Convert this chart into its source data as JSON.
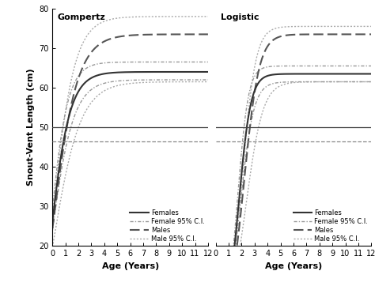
{
  "title_left": "Gompertz",
  "title_right": "Logistic",
  "xlabel": "Age (Years)",
  "ylabel": "Snout-Vent Length (cm)",
  "ylim": [
    20,
    80
  ],
  "xlim": [
    0,
    12
  ],
  "yticks": [
    20,
    30,
    40,
    50,
    60,
    70,
    80
  ],
  "xticks": [
    0,
    1,
    2,
    3,
    4,
    5,
    6,
    7,
    8,
    9,
    10,
    11,
    12
  ],
  "hline_solid": 50.0,
  "hline_dashed": 46.5,
  "gomp_female": {
    "L": 64.0,
    "k": 1.2,
    "t0": -0.1
  },
  "gomp_female_ci_low": {
    "L": 62.0,
    "k": 1.05,
    "t0": -0.05
  },
  "gomp_female_ci_high": {
    "L": 66.5,
    "k": 1.35,
    "t0": -0.15
  },
  "gomp_male": {
    "L": 73.5,
    "k": 0.95,
    "t0": 0.1
  },
  "gomp_male_ci_low": {
    "L": 61.5,
    "k": 0.85,
    "t0": 0.15
  },
  "gomp_male_ci_high": {
    "L": 78.0,
    "k": 1.05,
    "t0": 0.05
  },
  "log_female": {
    "L": 63.5,
    "k": 2.2,
    "t0": 1.8
  },
  "log_female_ci_low": {
    "L": 61.5,
    "k": 1.95,
    "t0": 1.9
  },
  "log_female_ci_high": {
    "L": 65.5,
    "k": 2.45,
    "t0": 1.7
  },
  "log_male": {
    "L": 73.5,
    "k": 1.75,
    "t0": 2.2
  },
  "log_male_ci_low": {
    "L": 61.5,
    "k": 1.55,
    "t0": 2.35
  },
  "log_male_ci_high": {
    "L": 75.5,
    "k": 1.95,
    "t0": 2.05
  },
  "legend_labels": [
    "Females",
    "Female 95% C.I.",
    "Males",
    "Male 95% C.I."
  ],
  "color_female": "#333333",
  "color_male": "#555555",
  "color_female_ci": "#999999",
  "color_male_ci": "#aaaaaa"
}
